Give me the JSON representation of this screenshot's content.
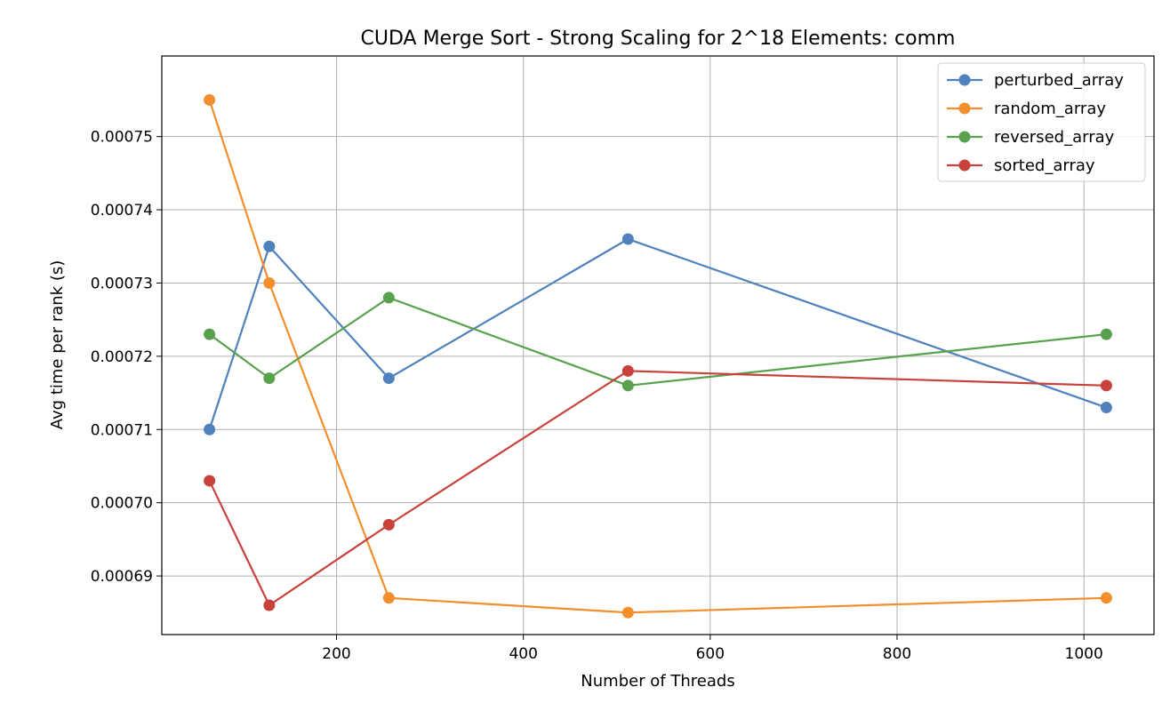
{
  "chart_data": {
    "type": "line",
    "title": "CUDA Merge Sort - Strong Scaling for 2^18 Elements: comm",
    "xlabel": "Number of Threads",
    "ylabel": "Avg time per rank (s)",
    "x": [
      64,
      128,
      256,
      512,
      1024
    ],
    "xlim": [
      13,
      1075
    ],
    "ylim": [
      0.000682,
      0.000761
    ],
    "xticks": [
      200,
      400,
      600,
      800,
      1000
    ],
    "xtick_labels": [
      "200",
      "400",
      "600",
      "800",
      "1000"
    ],
    "yticks": [
      0.00069,
      0.0007,
      0.00071,
      0.00072,
      0.00073,
      0.00074,
      0.00075
    ],
    "ytick_labels": [
      "0.00069",
      "0.00070",
      "0.00071",
      "0.00072",
      "0.00073",
      "0.00074",
      "0.00075"
    ],
    "grid": true,
    "legend_position": "top-right",
    "series": [
      {
        "name": "perturbed_array",
        "color": "#4f81bd",
        "values": [
          0.00071,
          0.000735,
          0.000717,
          0.000736,
          0.000713
        ]
      },
      {
        "name": "random_array",
        "color": "#f28e2b",
        "values": [
          0.000755,
          0.00073,
          0.000687,
          0.000685,
          0.000687
        ]
      },
      {
        "name": "reversed_array",
        "color": "#59a14f",
        "values": [
          0.000723,
          0.000717,
          0.000728,
          0.000716,
          0.000723
        ]
      },
      {
        "name": "sorted_array",
        "color": "#c8413b",
        "values": [
          0.000703,
          0.000686,
          0.000697,
          0.000718,
          0.000716
        ]
      }
    ]
  }
}
